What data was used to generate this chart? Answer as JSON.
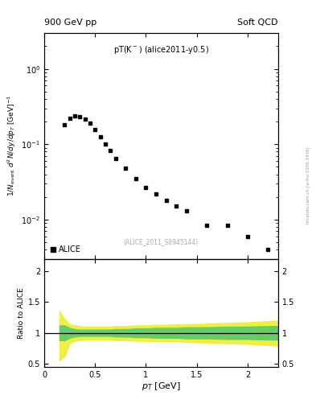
{
  "title_left": "900 GeV pp",
  "title_right": "Soft QCD",
  "plot_label": "pT(K^{-}) (alice2011-y0.5)",
  "dataset_label": "(ALICE_2011_S8945144)",
  "legend_label": "ALICE",
  "ylabel_main": "1/N_{event} d^{2}N/dy/dp_{T} [GeV]^{-1}",
  "ylabel_ratio": "Ratio to ALICE",
  "xlabel": "p_{T} [GeV]",
  "side_text": "mcplots.cern.ch [arXiv:1306.3436]",
  "xlim": [
    0,
    2.3
  ],
  "ylim_main": [
    0.003,
    3.0
  ],
  "ylim_ratio": [
    0.45,
    2.2
  ],
  "data_x": [
    0.2,
    0.25,
    0.3,
    0.35,
    0.4,
    0.45,
    0.5,
    0.55,
    0.6,
    0.65,
    0.7,
    0.8,
    0.9,
    1.0,
    1.1,
    1.2,
    1.3,
    1.4,
    1.6,
    1.8,
    2.0,
    2.2
  ],
  "data_y": [
    0.18,
    0.22,
    0.24,
    0.235,
    0.215,
    0.19,
    0.155,
    0.125,
    0.1,
    0.082,
    0.065,
    0.048,
    0.035,
    0.027,
    0.022,
    0.018,
    0.015,
    0.013,
    0.0085,
    0.0085,
    0.006,
    0.004
  ],
  "ratio_x": [
    0.15,
    0.2,
    0.25,
    0.3,
    0.35,
    0.4,
    0.45,
    0.5,
    0.55,
    0.6,
    0.65,
    0.7,
    0.8,
    0.9,
    1.0,
    1.1,
    1.2,
    1.3,
    1.4,
    1.6,
    1.8,
    2.0,
    2.2,
    2.3
  ],
  "ratio_green_upper": [
    1.12,
    1.12,
    1.08,
    1.06,
    1.05,
    1.05,
    1.05,
    1.05,
    1.05,
    1.05,
    1.05,
    1.06,
    1.06,
    1.07,
    1.07,
    1.08,
    1.08,
    1.08,
    1.09,
    1.09,
    1.1,
    1.1,
    1.11,
    1.11
  ],
  "ratio_green_lower": [
    0.88,
    0.88,
    0.92,
    0.94,
    0.95,
    0.95,
    0.95,
    0.95,
    0.95,
    0.95,
    0.95,
    0.94,
    0.94,
    0.93,
    0.93,
    0.92,
    0.92,
    0.92,
    0.91,
    0.91,
    0.9,
    0.9,
    0.89,
    0.89
  ],
  "ratio_yellow_upper": [
    1.35,
    1.22,
    1.14,
    1.12,
    1.11,
    1.1,
    1.1,
    1.1,
    1.1,
    1.1,
    1.1,
    1.11,
    1.11,
    1.12,
    1.12,
    1.13,
    1.13,
    1.14,
    1.14,
    1.15,
    1.16,
    1.17,
    1.19,
    1.2
  ],
  "ratio_yellow_lower": [
    0.55,
    0.62,
    0.83,
    0.87,
    0.88,
    0.89,
    0.89,
    0.89,
    0.89,
    0.89,
    0.89,
    0.88,
    0.88,
    0.87,
    0.87,
    0.86,
    0.86,
    0.86,
    0.85,
    0.84,
    0.83,
    0.82,
    0.8,
    0.79
  ],
  "marker_color": "black",
  "marker_style": "s",
  "marker_size": 3.5,
  "green_color": "#66cc66",
  "yellow_color": "#eeee44",
  "line_color": "black",
  "background_color": "white"
}
